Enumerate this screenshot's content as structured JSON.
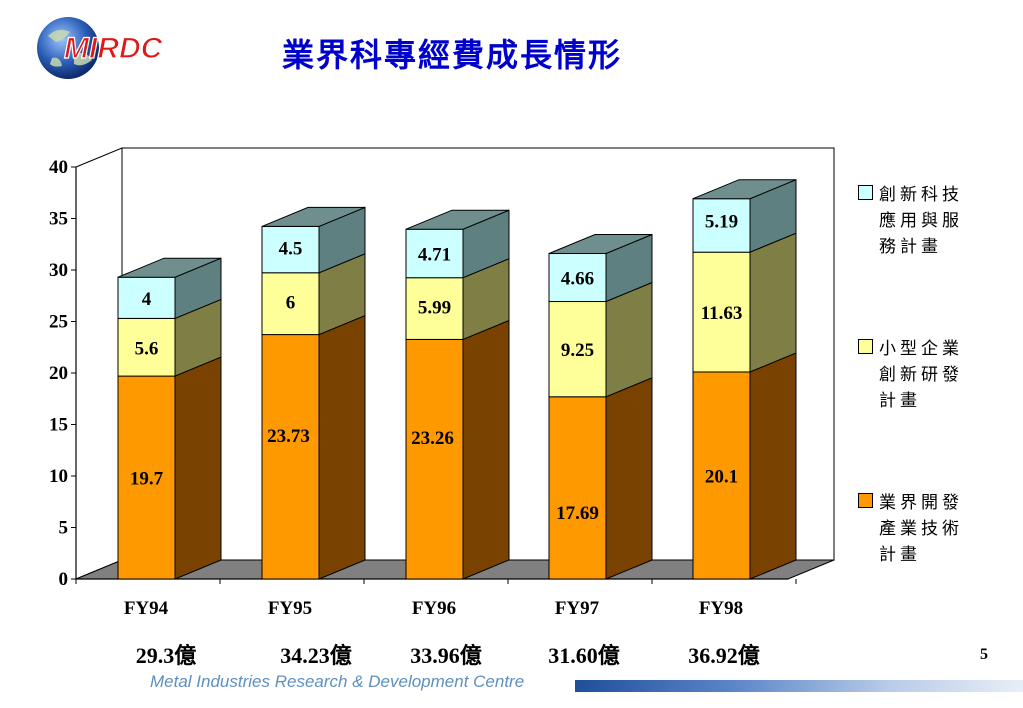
{
  "header": {
    "logo_text": "MIRDC",
    "title": "業界科專經費成長情形"
  },
  "colors": {
    "title": "#0000cc",
    "series_bottom": "#ff9900",
    "series_mid": "#ffff99",
    "series_top": "#ccffff"
  },
  "chart_data": {
    "type": "bar",
    "stacked": true,
    "three_d": true,
    "categories": [
      "FY94",
      "FY95",
      "FY96",
      "FY97",
      "FY98"
    ],
    "category_totals": [
      "29.3億",
      "34.23億",
      "33.96億",
      "31.60億",
      "36.92億"
    ],
    "series": [
      {
        "name": "業界開發產業技術計畫",
        "legend_lines": [
          "業界開發",
          "產業技術",
          "計畫"
        ],
        "values": [
          19.7,
          23.73,
          23.26,
          17.69,
          20.1
        ],
        "value_labels": [
          "19.7",
          "23.73",
          "23.26",
          "17.69",
          "20.1"
        ],
        "color": "#ff9900"
      },
      {
        "name": "小型企業創新研發計畫",
        "legend_lines": [
          "小型企業",
          "創新研發",
          "計畫"
        ],
        "values": [
          5.6,
          6,
          5.99,
          9.25,
          11.63
        ],
        "value_labels": [
          "5.6",
          "6",
          "5.99",
          "9.25",
          "11.63"
        ],
        "color": "#ffff99"
      },
      {
        "name": "創新科技應用與服務計畫",
        "legend_lines": [
          "創新科技",
          "應用與服",
          "務計畫"
        ],
        "values": [
          4,
          4.5,
          4.71,
          4.66,
          5.19
        ],
        "value_labels": [
          "4",
          "4.5",
          "4.71",
          "4.66",
          "5.19"
        ],
        "color": "#ccffff"
      }
    ],
    "ylim": [
      0,
      40
    ],
    "yticks": [
      "0",
      "5",
      "10",
      "15",
      "20",
      "25",
      "30",
      "35",
      "40"
    ],
    "legend_position": "right"
  },
  "footer": {
    "organization": "Metal Industries Research & Development Centre",
    "page_number": "5"
  }
}
